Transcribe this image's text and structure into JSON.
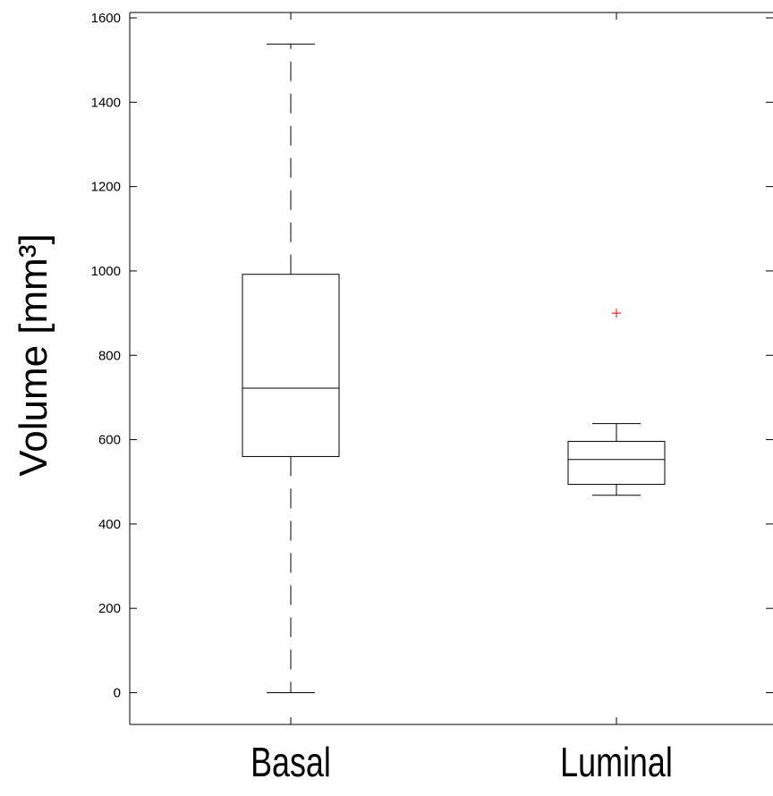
{
  "chart_data": {
    "type": "box",
    "title": "",
    "xlabel": "",
    "ylabel": "Volume [mm³]",
    "ylim": [
      -80,
      1610
    ],
    "yticks": [
      0,
      200,
      400,
      600,
      800,
      1000,
      1200,
      1400,
      1600
    ],
    "categories": [
      "Basal",
      "Luminal"
    ],
    "boxes": [
      {
        "name": "Basal",
        "whisker_low": 0,
        "q1": 560,
        "median": 722,
        "q3": 992,
        "whisker_high": 1538,
        "outliers": []
      },
      {
        "name": "Luminal",
        "whisker_low": 468,
        "q1": 494,
        "median": 553,
        "q3": 596,
        "whisker_high": 638,
        "outliers": [
          900
        ]
      }
    ],
    "colors": {
      "box": "#000000",
      "outlier": "#ff0000"
    },
    "grid": false,
    "legend": "none"
  }
}
